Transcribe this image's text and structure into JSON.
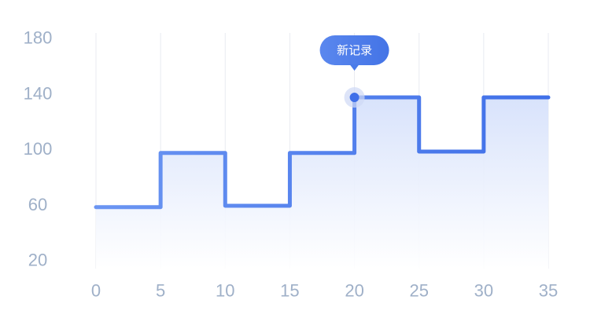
{
  "chart_data": {
    "type": "line",
    "step": true,
    "x": [
      0,
      5,
      10,
      15,
      20,
      25,
      30,
      35
    ],
    "y": [
      58,
      97,
      59,
      97,
      137,
      98,
      137,
      137
    ],
    "xticks": [
      "0",
      "5",
      "10",
      "15",
      "20",
      "25",
      "30",
      "35"
    ],
    "yticks": [
      "20",
      "60",
      "100",
      "140",
      "180"
    ],
    "xlim": [
      0,
      35
    ],
    "ylim": [
      20,
      180
    ],
    "grid": "vertical",
    "annotation": {
      "text": "新记录",
      "x": 20,
      "y": 137
    },
    "colors": {
      "line_start": "#6b95f2",
      "line_end": "#3f6fe8",
      "area_top": "#d6e1fb",
      "area_bottom": "#ffffff",
      "tooltip": "#4a7be9",
      "tick_text": "#9fb0c8",
      "grid": "#e8ebf0"
    }
  }
}
